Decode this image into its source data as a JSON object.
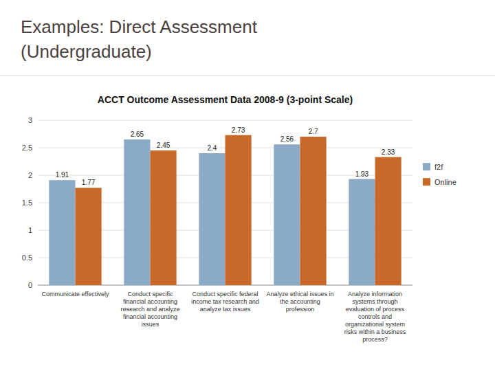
{
  "slide_title": [
    "Examples: Direct Assessment",
    "(Undergraduate)"
  ],
  "chart_data": {
    "type": "bar",
    "title": "ACCT Outcome Assessment Data 2008-9 (3-point Scale)",
    "categories": [
      "Communicate effectively",
      "Conduct specific\nfinancial accounting\nresearch and analyze\nfinancial accounting\nissues",
      "Conduct specific federal\nincome tax research and\nanalyze tax issues",
      "Analyze ethical issues in\nthe accounting\nprofession",
      "Analyze information\nsystems through\nevaluation of process\ncontrols and\norganizational system\nrisks within a business\nprocess?"
    ],
    "series": [
      {
        "name": "f2f",
        "color": "#8aaac8",
        "values": [
          1.91,
          2.65,
          2.4,
          2.56,
          1.93
        ]
      },
      {
        "name": "Online",
        "color": "#c8692a",
        "values": [
          1.77,
          2.45,
          2.73,
          2.7,
          2.33
        ]
      }
    ],
    "ylim": [
      0,
      3
    ],
    "yticks": [
      0,
      0.5,
      1,
      1.5,
      2,
      2.5,
      3
    ],
    "grid": true,
    "legend": "right",
    "data_labels": true
  }
}
